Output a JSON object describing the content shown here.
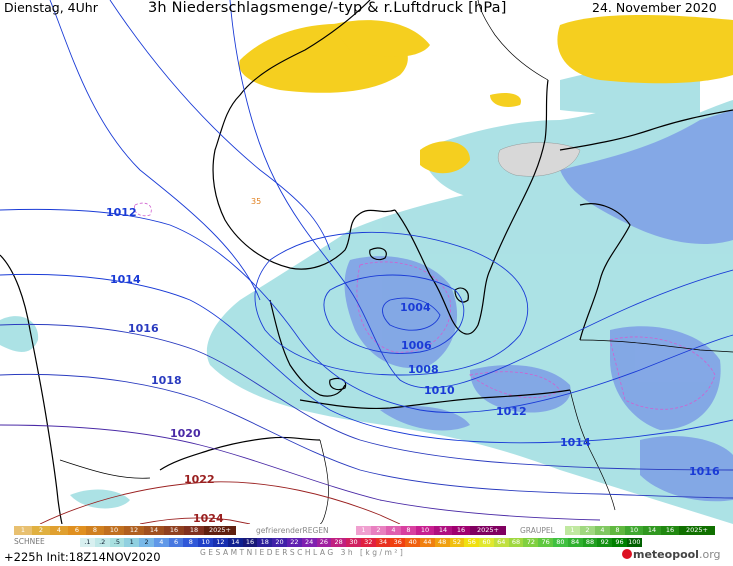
{
  "header": {
    "left": "Dienstag, 4Uhr",
    "center": "3h Niederschlagsmenge/-typ & r.Luftdruck [hPa]",
    "right": "24. November 2020"
  },
  "map": {
    "isobars": [
      {
        "label": "1004",
        "color": "#1a3bd6"
      },
      {
        "label": "1006",
        "color": "#1a3bd6"
      },
      {
        "label": "1008",
        "color": "#1a3bd6"
      },
      {
        "label": "1010",
        "color": "#1a3bd6"
      },
      {
        "label": "1012",
        "color": "#1a3bd6"
      },
      {
        "label": "1012",
        "color": "#1a3bd6"
      },
      {
        "label": "1014",
        "color": "#1a3bd6"
      },
      {
        "label": "1014",
        "color": "#1a3bd6"
      },
      {
        "label": "1016",
        "color": "#2a3bbf"
      },
      {
        "label": "1016",
        "color": "#1a3bd6"
      },
      {
        "label": "1018",
        "color": "#2a3bbf"
      },
      {
        "label": "1020",
        "color": "#4a2aa6"
      },
      {
        "label": "1022",
        "color": "#9a2020"
      },
      {
        "label": "1024",
        "color": "#9a2020"
      }
    ],
    "small_label": "35",
    "precip_colors": {
      "rain_light": "#a8e0e4",
      "rain_moderate": "#7fa7e8",
      "snow": "#f5d020",
      "mixed": "#c8c8c8"
    }
  },
  "legend": {
    "mix_title": "",
    "mix_values": [
      "1",
      "2",
      "4",
      "6",
      "8",
      "10",
      "12",
      "14",
      "16",
      "18",
      "2025+"
    ],
    "freezing_rain_title": "gefrierenderREGEN",
    "freezing_rain_values": [
      "1",
      "2",
      "4",
      "8",
      "10",
      "14",
      "16",
      "2025+"
    ],
    "graupel_title": "GRAUPEL",
    "graupel_values": [
      "1",
      "2",
      "4",
      "8",
      "10",
      "14",
      "16",
      "2025+"
    ],
    "snow_title": "SCHNEE",
    "total_values": [
      ".1",
      ".2",
      ".5",
      "1",
      "2",
      "4",
      "6",
      "8",
      "10",
      "12",
      "14",
      "16",
      "18",
      "20",
      "22",
      "24",
      "26",
      "28",
      "30",
      "32",
      "34",
      "36",
      "40",
      "44",
      "48",
      "52",
      "56",
      "60",
      "64",
      "68",
      "72",
      "76",
      "80",
      "84",
      "88",
      "92",
      "96",
      "100"
    ],
    "total_title": "GESAMTNIEDERSCHLAG 3h [kg/m²]"
  },
  "footer": {
    "run_info": "+225h  Init:18Z14NOV2020",
    "logo_text": "meteopool",
    "logo_suffix": ".org"
  }
}
